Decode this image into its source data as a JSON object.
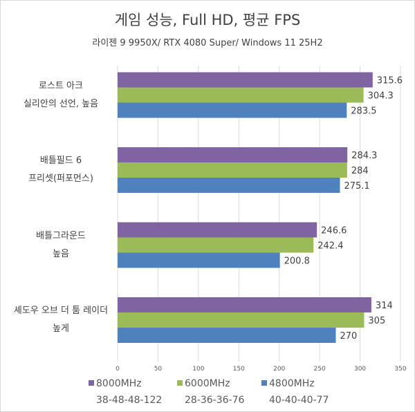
{
  "chart_data": {
    "type": "bar",
    "orientation": "horizontal",
    "title": "게임 성능, Full HD, 평균 FPS",
    "subtitle": "라이젠 9 9950X/ RTX 4080 Super/ Windows 11 25H2",
    "categories": [
      [
        "로스트 아크",
        "실리안의 선언, 높음"
      ],
      [
        "배틀필드 6",
        "프리셋(퍼포먼스)"
      ],
      [
        "배틀그라운드",
        "높음"
      ],
      [
        "셰도우 오브 더 툼 레이더",
        "높게"
      ]
    ],
    "series": [
      {
        "name": "8000MHz",
        "timing": "38-48-48-122",
        "color": "#8064a2",
        "values": [
          315.6,
          284.3,
          246.6,
          314
        ]
      },
      {
        "name": "6000MHz",
        "timing": "28-36-36-76",
        "color": "#9bbb59",
        "values": [
          304.3,
          284,
          242.4,
          305
        ]
      },
      {
        "name": "4800MHz",
        "timing": "40-40-40-77",
        "color": "#4f81bd",
        "values": [
          283.5,
          275.1,
          200.8,
          270
        ]
      }
    ],
    "xlim": [
      0,
      350
    ],
    "xticks": [
      0,
      50,
      100,
      150,
      200,
      250,
      300,
      350
    ],
    "grid": true,
    "legend": "bottom"
  }
}
